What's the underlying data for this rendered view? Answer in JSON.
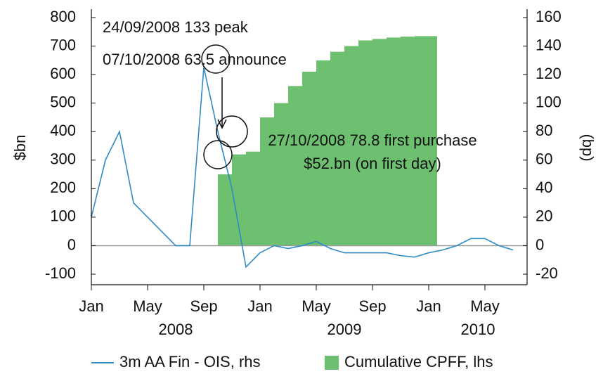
{
  "chart_data": {
    "type": "line-area",
    "y_label": "$bn",
    "y2_label": "(bp)",
    "xlim": [
      "2008-01",
      "2010-08"
    ],
    "xticks": [
      {
        "value": "2008-01",
        "label": "Jan"
      },
      {
        "value": "2008-05",
        "label": "May"
      },
      {
        "value": "2008-09",
        "label": "Sep"
      },
      {
        "value": "2009-01",
        "label": "Jan"
      },
      {
        "value": "2009-05",
        "label": "May"
      },
      {
        "value": "2009-09",
        "label": "Sep"
      },
      {
        "value": "2010-01",
        "label": "Jan"
      },
      {
        "value": "2010-05",
        "label": "May"
      }
    ],
    "year_labels": [
      "2008",
      "2009",
      "2010"
    ],
    "ylim": [
      -100,
      800
    ],
    "yticks": [
      -100,
      0,
      100,
      200,
      300,
      400,
      500,
      600,
      700,
      800
    ],
    "y2lim": [
      -20,
      160
    ],
    "y2ticks": [
      -20,
      0,
      20,
      40,
      60,
      80,
      100,
      120,
      140,
      160
    ],
    "series": [
      {
        "name": "3m AA Fin - OIS, rhs",
        "kind": "line",
        "axis": "y2",
        "color": "#2e8bc6",
        "x": [
          "2008-01",
          "2008-02",
          "2008-03",
          "2008-04",
          "2008-05",
          "2008-06",
          "2008-07",
          "2008-08",
          "2008-09",
          "2008-10",
          "2008-11",
          "2008-12",
          "2009-01",
          "2009-02",
          "2009-03",
          "2009-04",
          "2009-05",
          "2009-06",
          "2009-07",
          "2009-08",
          "2009-09",
          "2009-10",
          "2009-11",
          "2009-12",
          "2010-01",
          "2010-02",
          "2010-03",
          "2010-04",
          "2010-05",
          "2010-06",
          "2010-07"
        ],
        "values": [
          20,
          60,
          80,
          30,
          20,
          10,
          0,
          0,
          125,
          80,
          40,
          -15,
          -5,
          0,
          -2,
          0,
          3,
          -2,
          -5,
          -5,
          -5,
          -5,
          -7,
          -8,
          -5,
          -3,
          0,
          5,
          5,
          0,
          -3
        ]
      },
      {
        "name": "Cumulative CPFF, lhs",
        "kind": "area",
        "axis": "y",
        "color": "#6cc070",
        "x": [
          "2008-10",
          "2008-11",
          "2008-12",
          "2009-01",
          "2009-02",
          "2009-03",
          "2009-04",
          "2009-05",
          "2009-06",
          "2009-07",
          "2009-08",
          "2009-09",
          "2009-10",
          "2009-11",
          "2009-12",
          "2010-01"
        ],
        "values": [
          250,
          320,
          330,
          450,
          500,
          560,
          610,
          650,
          680,
          700,
          720,
          725,
          730,
          733,
          735,
          735
        ]
      }
    ],
    "annotations": [
      "24/09/2008 133 peak",
      "07/10/2008 63.5 announce",
      "27/10/2008 78.8 first purchase",
      "$52.bn (on first day)"
    ],
    "zero_line": true
  }
}
